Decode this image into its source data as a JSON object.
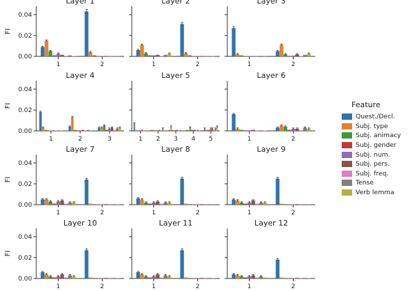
{
  "legend": {
    "title": "Feature",
    "entries": [
      {
        "name": "Quest./Decl.",
        "color": "#2f74a8"
      },
      {
        "name": "Subj. type",
        "color": "#e8812b"
      },
      {
        "name": "Subj. animacy",
        "color": "#3a9a3d"
      },
      {
        "name": "Subj. gender",
        "color": "#c23a36"
      },
      {
        "name": "Subj. num.",
        "color": "#8f6cb8"
      },
      {
        "name": "Subj. pers.",
        "color": "#84574b"
      },
      {
        "name": "Subj. freq.",
        "color": "#dc7fc3"
      },
      {
        "name": "Tense",
        "color": "#7f7f7f"
      },
      {
        "name": "Verb lemma",
        "color": "#b4b43a"
      }
    ]
  },
  "chart_data": [
    {
      "type": "bar",
      "title": "Layer 1",
      "ylabel": "FI",
      "ylim": [
        0,
        0.048
      ],
      "yticks": [
        "0.00",
        "0.02",
        "0.04"
      ],
      "categories": [
        "1",
        "2"
      ],
      "values": [
        [
          0.009,
          0.015,
          0.005,
          0.001,
          0.0025,
          0.0015,
          0.0005,
          0.001,
          0.0003
        ],
        [
          0.043,
          0.004,
          0.001,
          0.0003,
          0.0002,
          0.0004,
          0.0002,
          0.0003,
          0.0002
        ]
      ]
    },
    {
      "type": "bar",
      "title": "Layer 2",
      "ylabel": "",
      "ylim": [
        0,
        0.048
      ],
      "yticks": [],
      "categories": [
        "1",
        "2"
      ],
      "values": [
        [
          0.006,
          0.011,
          0.003,
          0.001,
          0.001,
          0.0015,
          0.0003,
          0.0015,
          0.0025
        ],
        [
          0.031,
          0.003,
          0.001,
          0.0003,
          0.0003,
          0.0004,
          0.0002,
          0.0004,
          0.0003
        ]
      ]
    },
    {
      "type": "bar",
      "title": "Layer 3",
      "ylabel": "",
      "ylim": [
        0,
        0.048
      ],
      "yticks": [],
      "categories": [
        "1",
        "2"
      ],
      "values": [
        [
          0.027,
          0.002,
          0.001,
          0.0003,
          0.0003,
          0.0003,
          0.0002,
          0.0005,
          0.0002
        ],
        [
          0.005,
          0.011,
          0.002,
          0.0005,
          0.0008,
          0.002,
          0.0003,
          0.0015,
          0.0025
        ]
      ]
    },
    {
      "type": "bar",
      "title": "Layer 4",
      "ylabel": "FI",
      "ylim": [
        0,
        0.048
      ],
      "yticks": [
        "0.00",
        "0.02",
        "0.04"
      ],
      "categories": [
        "1",
        "2",
        "3"
      ],
      "values": [
        [
          0.018,
          0.003,
          0.001,
          0.0005,
          0.0003,
          0.0005,
          0.0003,
          0.0005,
          0.0003
        ],
        [
          0.004,
          0.013,
          0.001,
          0.0005,
          0.0005,
          0.001,
          0.0003,
          0.001,
          0.0005
        ],
        [
          0.003,
          0.003,
          0.005,
          0.001,
          0.002,
          0.003,
          0.001,
          0.002,
          0.003
        ]
      ]
    },
    {
      "type": "bar",
      "title": "Layer 5",
      "ylabel": "",
      "ylim": [
        0,
        0.048
      ],
      "yticks": [],
      "categories": [
        "1",
        "2",
        "3",
        "4",
        "5"
      ],
      "values": [
        [
          0.007,
          0.001,
          0.0005,
          0.0005,
          0.0005,
          0.001,
          0.0003,
          0.0005,
          0.0005
        ],
        [
          0.001,
          0.001,
          0.0005,
          0.0005,
          0.0005,
          0.001,
          0.0003,
          0.002,
          0.0005
        ],
        [
          0.001,
          0.004,
          0.001,
          0.0005,
          0.001,
          0.001,
          0.0003,
          0.001,
          0.0005
        ],
        [
          0.001,
          0.001,
          0.003,
          0.001,
          0.001,
          0.001,
          0.0003,
          0.001,
          0.0005
        ],
        [
          0.002,
          0.001,
          0.001,
          0.001,
          0.002,
          0.002,
          0.001,
          0.002,
          0.004
        ]
      ]
    },
    {
      "type": "bar",
      "title": "Layer 6",
      "ylabel": "",
      "ylim": [
        0,
        0.048
      ],
      "yticks": [],
      "categories": [
        "1",
        "2"
      ],
      "values": [
        [
          0.016,
          0.002,
          0.001,
          0.0005,
          0.0005,
          0.001,
          0.0003,
          0.0005,
          0.0003
        ],
        [
          0.003,
          0.005,
          0.004,
          0.001,
          0.002,
          0.002,
          0.0005,
          0.003,
          0.002
        ]
      ]
    },
    {
      "type": "bar",
      "title": "Layer 7",
      "ylabel": "FI",
      "ylim": [
        0,
        0.048
      ],
      "yticks": [
        "0.00",
        "0.02",
        "0.04"
      ],
      "categories": [
        "1",
        "2"
      ],
      "values": [
        [
          0.005,
          0.005,
          0.003,
          0.001,
          0.003,
          0.004,
          0.001,
          0.002,
          0.002
        ],
        [
          0.024,
          0.001,
          0.0005,
          0.0003,
          0.0003,
          0.0005,
          0.0002,
          0.0005,
          0.0002
        ]
      ]
    },
    {
      "type": "bar",
      "title": "Layer 8",
      "ylabel": "",
      "ylim": [
        0,
        0.048
      ],
      "yticks": [],
      "categories": [
        "1",
        "2"
      ],
      "values": [
        [
          0.006,
          0.005,
          0.002,
          0.001,
          0.002,
          0.003,
          0.001,
          0.002,
          0.002
        ],
        [
          0.025,
          0.001,
          0.0005,
          0.0003,
          0.0003,
          0.0005,
          0.0002,
          0.0005,
          0.0002
        ]
      ]
    },
    {
      "type": "bar",
      "title": "Layer 9",
      "ylabel": "",
      "ylim": [
        0,
        0.048
      ],
      "yticks": [],
      "categories": [
        "1",
        "2"
      ],
      "values": [
        [
          0.005,
          0.004,
          0.002,
          0.001,
          0.002,
          0.004,
          0.001,
          0.002,
          0.002
        ],
        [
          0.025,
          0.001,
          0.0005,
          0.0003,
          0.0003,
          0.0005,
          0.0002,
          0.0005,
          0.0002
        ]
      ]
    },
    {
      "type": "bar",
      "title": "Layer 10",
      "ylabel": "FI",
      "ylim": [
        0,
        0.048
      ],
      "yticks": [
        "0.00",
        "0.02",
        "0.04"
      ],
      "categories": [
        "1",
        "2"
      ],
      "values": [
        [
          0.006,
          0.004,
          0.002,
          0.001,
          0.002,
          0.004,
          0.001,
          0.003,
          0.002
        ],
        [
          0.027,
          0.001,
          0.0005,
          0.0003,
          0.0003,
          0.0005,
          0.0002,
          0.0005,
          0.0002
        ]
      ]
    },
    {
      "type": "bar",
      "title": "Layer 11",
      "ylabel": "",
      "ylim": [
        0,
        0.048
      ],
      "yticks": [],
      "categories": [
        "1",
        "2"
      ],
      "values": [
        [
          0.006,
          0.004,
          0.002,
          0.001,
          0.002,
          0.004,
          0.001,
          0.003,
          0.002
        ],
        [
          0.027,
          0.001,
          0.0005,
          0.0003,
          0.0003,
          0.0005,
          0.0002,
          0.0005,
          0.0002
        ]
      ]
    },
    {
      "type": "bar",
      "title": "Layer 12",
      "ylabel": "",
      "ylim": [
        0,
        0.048
      ],
      "yticks": [],
      "categories": [
        "1",
        "2"
      ],
      "values": [
        [
          0.004,
          0.003,
          0.002,
          0.001,
          0.002,
          0.003,
          0.001,
          0.002,
          0.001
        ],
        [
          0.018,
          0.001,
          0.0005,
          0.0003,
          0.0003,
          0.0005,
          0.0002,
          0.0005,
          0.0002
        ]
      ]
    }
  ]
}
